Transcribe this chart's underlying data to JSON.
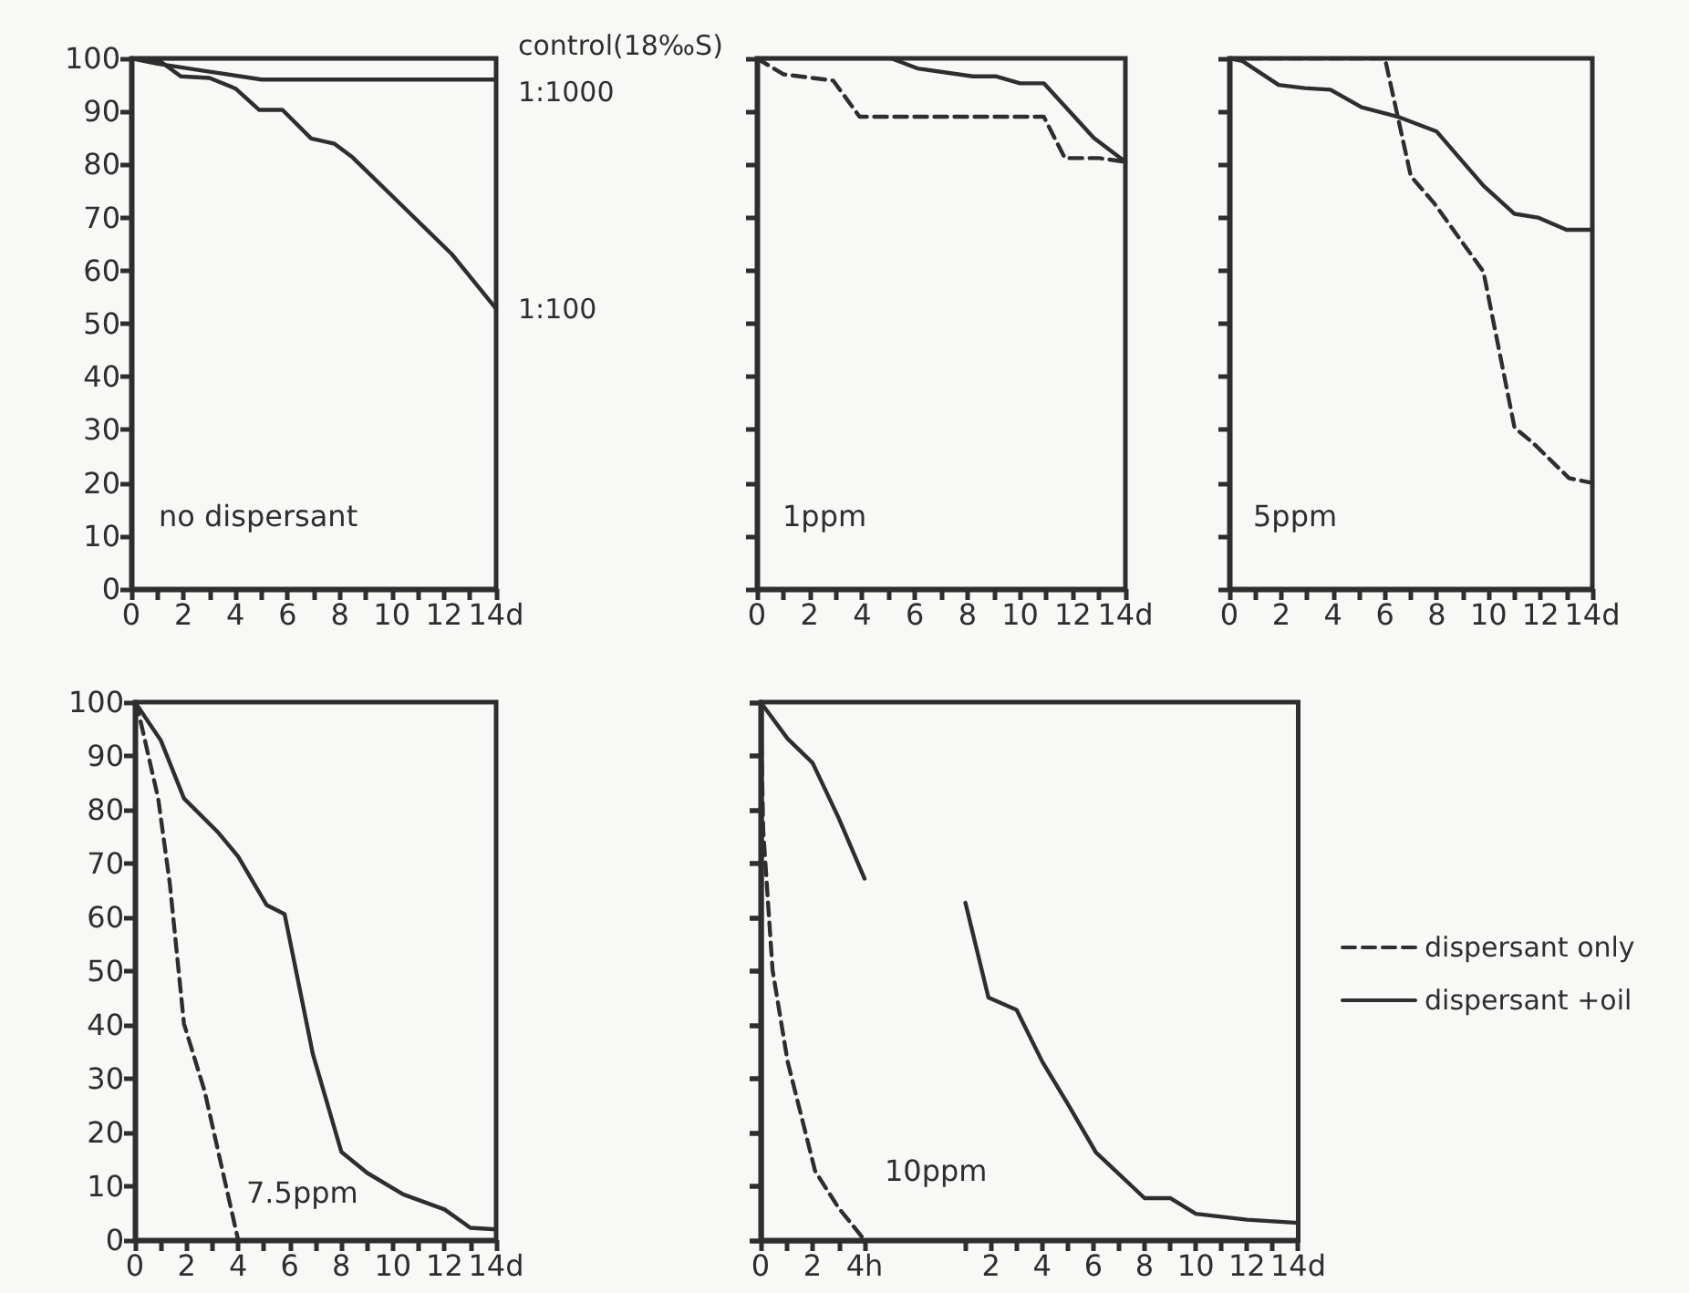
{
  "chart_data": [
    {
      "type": "line",
      "title": "no dispersant",
      "xlim": [
        0,
        14
      ],
      "ylim": [
        0,
        100
      ],
      "xticks": [
        0,
        {
          "value": 1,
          "label": null
        },
        2,
        {
          "value": 3,
          "label": null
        },
        4,
        {
          "value": 5,
          "label": null
        },
        6,
        {
          "value": 7,
          "label": null
        },
        8,
        {
          "value": 9,
          "label": null
        },
        10,
        {
          "value": 11,
          "label": null
        },
        12,
        {
          "value": 13,
          "label": null
        },
        {
          "value": 14,
          "label": "14d"
        }
      ],
      "yticks": [
        0,
        10,
        20,
        30,
        40,
        50,
        60,
        70,
        80,
        90,
        100
      ],
      "series": [
        {
          "name": "control(18‰S)",
          "color": "#2e2e2e",
          "line_style": "solid",
          "x": [
            0,
            14
          ],
          "values": [
            100,
            100
          ]
        },
        {
          "name": "1:1000",
          "color": "#2e2e2e",
          "line_style": "solid",
          "x": [
            0,
            1,
            3,
            5,
            14
          ],
          "values": [
            100,
            99,
            97.5,
            96,
            96
          ]
        },
        {
          "name": "1:100",
          "color": "#2e2e2e",
          "line_style": "solid",
          "x": [
            0,
            1.1,
            1.9,
            3,
            4,
            4.9,
            5.8,
            6.9,
            7.8,
            8.5,
            10.4,
            12.3,
            14
          ],
          "values": [
            100,
            99.5,
            96.6,
            96.3,
            94.3,
            90.3,
            90.3,
            84.9,
            83.9,
            81.3,
            72.2,
            63.1,
            52.8
          ]
        }
      ]
    },
    {
      "type": "line",
      "title": "1ppm",
      "xlim": [
        0,
        14
      ],
      "ylim": [
        0,
        100
      ],
      "tick_labels": "x",
      "xticks": [
        0,
        {
          "value": 1,
          "label": null
        },
        2,
        {
          "value": 3,
          "label": null
        },
        4,
        {
          "value": 5,
          "label": null
        },
        6,
        {
          "value": 7,
          "label": null
        },
        8,
        {
          "value": 9,
          "label": null
        },
        10,
        {
          "value": 11,
          "label": null
        },
        12,
        {
          "value": 13,
          "label": null
        },
        {
          "value": 14,
          "label": "14d"
        }
      ],
      "yticks": [
        0,
        10,
        20,
        30,
        40,
        50,
        60,
        70,
        80,
        90,
        100
      ],
      "series": [
        {
          "color": "#2e2e2e",
          "line_style": "dashed",
          "x": [
            0,
            1,
            2.9,
            3.9,
            10.9,
            11.7,
            13,
            14
          ],
          "values": [
            100,
            97,
            95.8,
            89,
            89,
            81.2,
            81.2,
            80.5
          ]
        },
        {
          "color": "#2e2e2e",
          "line_style": "solid",
          "x": [
            0,
            5.1,
            6.1,
            8.2,
            9.1,
            10,
            10.9,
            12.8,
            14
          ],
          "values": [
            100,
            100,
            98.1,
            96.6,
            96.6,
            95.3,
            95.3,
            85,
            80.5
          ]
        }
      ]
    },
    {
      "type": "line",
      "title": "5ppm",
      "xlim": [
        0,
        14
      ],
      "ylim": [
        0,
        100
      ],
      "tick_labels": "x",
      "xticks": [
        0,
        {
          "value": 1,
          "label": null
        },
        2,
        {
          "value": 3,
          "label": null
        },
        4,
        {
          "value": 5,
          "label": null
        },
        6,
        {
          "value": 7,
          "label": null
        },
        8,
        {
          "value": 9,
          "label": null
        },
        10,
        {
          "value": 11,
          "label": null
        },
        12,
        {
          "value": 13,
          "label": null
        },
        {
          "value": 14,
          "label": "14d"
        }
      ],
      "yticks": [
        0,
        10,
        20,
        30,
        40,
        50,
        60,
        70,
        80,
        90,
        100
      ],
      "series": [
        {
          "color": "#2e2e2e",
          "line_style": "dashed",
          "x": [
            0,
            6,
            7,
            7.9,
            9.8,
            11,
            11.7,
            13.1,
            14
          ],
          "values": [
            100,
            100,
            77.8,
            72.7,
            59.8,
            30.4,
            27.6,
            20.9,
            20
          ]
        },
        {
          "color": "#2e2e2e",
          "line_style": "solid",
          "x": [
            0,
            0.5,
            1.9,
            2.9,
            3.9,
            5.1,
            6.5,
            8,
            9.8,
            11,
            11.9,
            13,
            14
          ],
          "values": [
            100,
            99.5,
            95,
            94.4,
            94.1,
            90.8,
            89,
            86.2,
            76,
            70.7,
            70,
            67.7,
            67.7
          ]
        }
      ]
    },
    {
      "type": "line",
      "title": "7.5ppm",
      "xlim": [
        0,
        14
      ],
      "ylim": [
        0,
        100
      ],
      "xticks": [
        0,
        {
          "value": 1,
          "label": null
        },
        2,
        {
          "value": 3,
          "label": null
        },
        4,
        {
          "value": 5,
          "label": null
        },
        6,
        {
          "value": 7,
          "label": null
        },
        8,
        {
          "value": 9,
          "label": null
        },
        10,
        {
          "value": 11,
          "label": null
        },
        12,
        {
          "value": 13,
          "label": null
        },
        {
          "value": 14,
          "label": "14d"
        }
      ],
      "yticks": [
        0,
        10,
        20,
        30,
        40,
        50,
        60,
        70,
        80,
        90,
        100
      ],
      "series": [
        {
          "color": "#2e2e2e",
          "line_style": "dashed",
          "x": [
            0,
            0.2,
            0.9,
            1.35,
            1.9,
            2.7,
            4
          ],
          "values": [
            100,
            96.8,
            82.1,
            66.3,
            40.2,
            27.7,
            0
          ]
        },
        {
          "color": "#2e2e2e",
          "line_style": "solid",
          "x": [
            0,
            1,
            1.9,
            3.2,
            4,
            5.1,
            5.8,
            6.9,
            8,
            9,
            10.4,
            12,
            13,
            14
          ],
          "values": [
            100,
            92.9,
            82.1,
            75.9,
            71.3,
            62.3,
            60.6,
            34.5,
            16.4,
            12.5,
            8.5,
            5.7,
            2.3,
            2
          ]
        }
      ]
    },
    {
      "type": "line",
      "xlim": [
        0,
        4
      ],
      "ylim": [
        0,
        100
      ],
      "tick_labels": "x",
      "legend": "right",
      "xticks": [
        0,
        {
          "value": 1,
          "label": null
        },
        2,
        {
          "value": 3,
          "label": null
        },
        {
          "value": 4,
          "label": "4h"
        }
      ],
      "yticks": [
        0,
        10,
        20,
        30,
        40,
        50,
        60,
        70,
        80,
        90,
        100
      ],
      "series": [
        {
          "name": "dispersant only",
          "color": "#2e2e2e",
          "line_style": "dashed",
          "x": [
            0,
            0.1,
            0.46,
            1.04,
            2.1,
            3,
            4
          ],
          "values": [
            100,
            76.2,
            50.2,
            33.2,
            12.8,
            6,
            0
          ]
        },
        {
          "name": "dispersant +oil",
          "color": "#2e2e2e",
          "line_style": "solid",
          "x": [
            0,
            1.04,
            2,
            3,
            4
          ],
          "values": [
            100,
            93.2,
            88.7,
            78.5,
            67.2
          ]
        }
      ]
    },
    {
      "type": "line",
      "title": "10ppm",
      "xlim": [
        -7,
        14
      ],
      "ylim": [
        0,
        100
      ],
      "tick_labels": "x",
      "xticks": [
        {
          "value": 1,
          "label": null
        },
        2,
        {
          "value": 3,
          "label": null
        },
        4,
        {
          "value": 5,
          "label": null
        },
        6,
        {
          "value": 7,
          "label": null
        },
        8,
        {
          "value": 9,
          "label": null
        },
        10,
        {
          "value": 11,
          "label": null
        },
        12,
        {
          "value": 13,
          "label": null
        },
        {
          "value": 14,
          "label": "14d"
        }
      ],
      "yticks": [
        0,
        10,
        20,
        30,
        40,
        50,
        60,
        70,
        80,
        90,
        100
      ],
      "series": [
        {
          "color": "#2e2e2e",
          "line_style": "solid",
          "x": [
            1,
            1.9,
            3,
            4,
            5,
            6.1,
            8,
            9,
            10,
            12,
            14
          ],
          "values": [
            62.7,
            45.1,
            42.8,
            33.2,
            25.3,
            16.3,
            7.8,
            7.8,
            4.9,
            3.8,
            3.2
          ]
        }
      ]
    }
  ]
}
